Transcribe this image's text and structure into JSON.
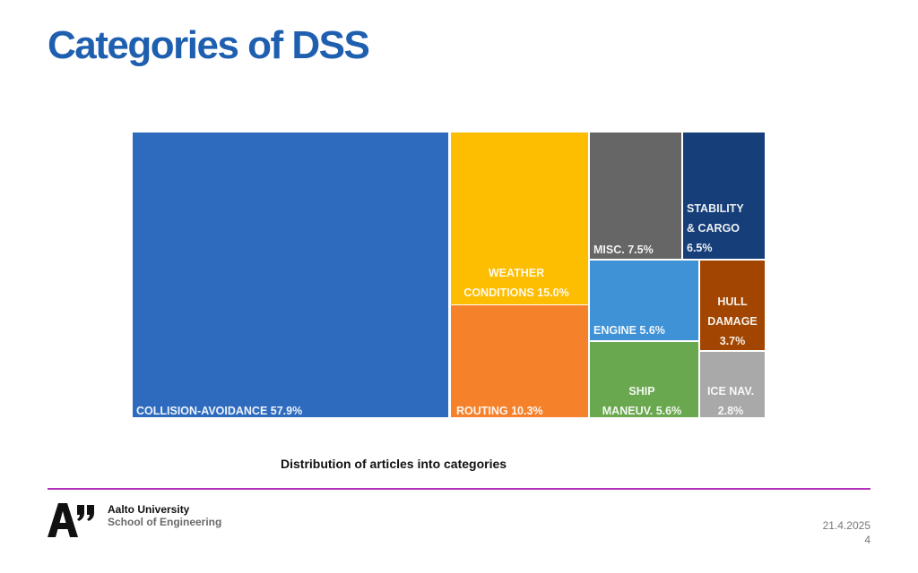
{
  "slide": {
    "title": "Categories of DSS",
    "caption": "Distribution of articles into categories",
    "date": "21.4.2025",
    "page_number": "4"
  },
  "footer": {
    "university": "Aalto University",
    "school": "School of Engineering",
    "accent_color": "#b030b8"
  },
  "chart_data": {
    "type": "treemap",
    "title": "",
    "unit": "%",
    "items": [
      {
        "id": "collision-avoidance",
        "value": 57.9,
        "color": "#2e6bbf",
        "label_lines": [
          "COLLISION-AVOIDANCE 57.9%"
        ]
      },
      {
        "id": "weather-conditions",
        "value": 15.0,
        "color": "#fdbd00",
        "label_lines": [
          "WEATHER",
          "CONDITIONS 15.0%"
        ]
      },
      {
        "id": "routing",
        "value": 10.3,
        "color": "#f5812b",
        "label_lines": [
          "ROUTING 10.3%"
        ]
      },
      {
        "id": "misc",
        "value": 7.5,
        "color": "#666666",
        "label_lines": [
          "MISC. 7.5%"
        ]
      },
      {
        "id": "stability-cargo",
        "value": 6.5,
        "color": "#163e78",
        "label_lines": [
          "STABILITY",
          "& CARGO",
          "6.5%"
        ]
      },
      {
        "id": "engine",
        "value": 5.6,
        "color": "#3f92d6",
        "label_lines": [
          "ENGINE 5.6%"
        ]
      },
      {
        "id": "ship-maneuv",
        "value": 5.6,
        "color": "#6aa84f",
        "label_lines": [
          "SHIP",
          "MANEUV. 5.6%"
        ]
      },
      {
        "id": "hull-damage",
        "value": 3.7,
        "color": "#a14500",
        "label_lines": [
          "HULL",
          "DAMAGE",
          "3.7%"
        ]
      },
      {
        "id": "ice-nav",
        "value": 2.8,
        "color": "#a9a9a9",
        "label_lines": [
          "ICE NAV.",
          "2.8%"
        ]
      }
    ]
  }
}
